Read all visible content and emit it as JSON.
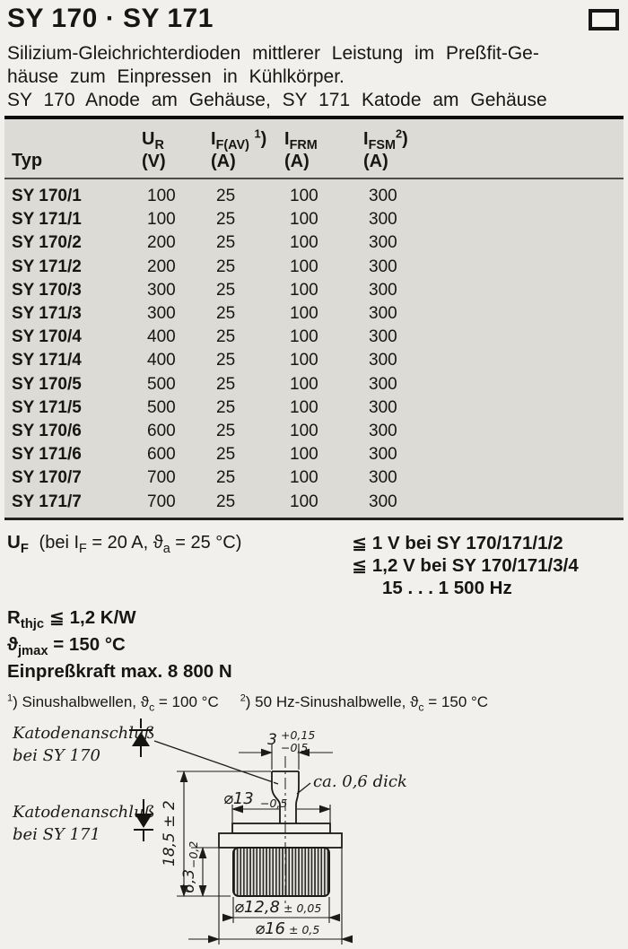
{
  "header": {
    "title": "SY 170 · SY 171",
    "corner_icon": "rectangle-outline"
  },
  "intro": {
    "lines": [
      "Silizium-Gleichrichterdioden mittlerer Leistung im Preßfit-Ge-",
      "häuse zum Einpressen in Kühlkörper.",
      "SY 170 Anode am Gehäuse, SY 171 Katode am Gehäuse"
    ]
  },
  "table": {
    "headers": [
      {
        "symbol": "Typ",
        "unit": ""
      },
      {
        "symbol": "U_{R}",
        "unit": "(V)"
      },
      {
        "symbol": "I_{F(AV)} ^{1})",
        "unit": "(A)"
      },
      {
        "symbol": "I_{FRM}",
        "unit": "(A)"
      },
      {
        "symbol": "I_{FSM}^{2})",
        "unit": "(A)"
      }
    ],
    "rows": [
      [
        "SY 170/1",
        "100",
        "25",
        "100",
        "300"
      ],
      [
        "SY 171/1",
        "100",
        "25",
        "100",
        "300"
      ],
      [
        "SY 170/2",
        "200",
        "25",
        "100",
        "300"
      ],
      [
        "SY 171/2",
        "200",
        "25",
        "100",
        "300"
      ],
      [
        "SY 170/3",
        "300",
        "25",
        "100",
        "300"
      ],
      [
        "SY 171/3",
        "300",
        "25",
        "100",
        "300"
      ],
      [
        "SY 170/4",
        "400",
        "25",
        "100",
        "300"
      ],
      [
        "SY 171/4",
        "400",
        "25",
        "100",
        "300"
      ],
      [
        "SY 170/5",
        "500",
        "25",
        "100",
        "300"
      ],
      [
        "SY 171/5",
        "500",
        "25",
        "100",
        "300"
      ],
      [
        "SY 170/6",
        "600",
        "25",
        "100",
        "300"
      ],
      [
        "SY 171/6",
        "600",
        "25",
        "100",
        "300"
      ],
      [
        "SY 170/7",
        "700",
        "25",
        "100",
        "300"
      ],
      [
        "SY 171/7",
        "700",
        "25",
        "100",
        "300"
      ]
    ]
  },
  "uf": {
    "symbol": "U_{F}",
    "condition": "(bei I_{F} = 20 A, ϑ_{a} = 25 °C)",
    "limit_lines": [
      "≦ 1 V bei SY 170/171/1/2",
      "≦ 1,2 V bei SY 170/171/3/4"
    ],
    "frequency": "15 . . . 1 500 Hz"
  },
  "params": {
    "rth": "R_{thjc} ≦ 1,2 K/W",
    "tjmax": "ϑ_{jmax} = 150 °C",
    "press_force": "Einpreßkraft max. 8 800 N"
  },
  "footnotes": {
    "fn1": "^{1}) Sinushalbwellen, ϑ_{c} = 100 °C",
    "fn2": "^{2}) 50 Hz-Sinushalbwelle, ϑ_{c} = 150 °C"
  },
  "drawing": {
    "sy170_label_line1": "Katodenanschluß",
    "sy170_label_line2": "bei SY 170",
    "sy171_label_line1": "Katodenanschluß",
    "sy171_label_line2": "bei SY 171",
    "thickness_note": "ca. 0,6 dick",
    "pin_width": "3",
    "pin_tol_plus": "+0,15",
    "pin_tol_minus": "−0,5",
    "cap_dia": "⌀13",
    "cap_dia_tol": "−0,5",
    "total_height": "18,5 ± 2",
    "knurl_height": "6,3",
    "knurl_height_tol": "−0,2",
    "body_dia": "⌀12,8",
    "body_dia_tol": "± 0,05",
    "flange_dia": "⌀16",
    "flange_dia_tol": "± 0,5"
  },
  "colors": {
    "page_bg": "#f1f0ec",
    "table_band_bg": "#dcdbd5",
    "ink": "#161614"
  }
}
